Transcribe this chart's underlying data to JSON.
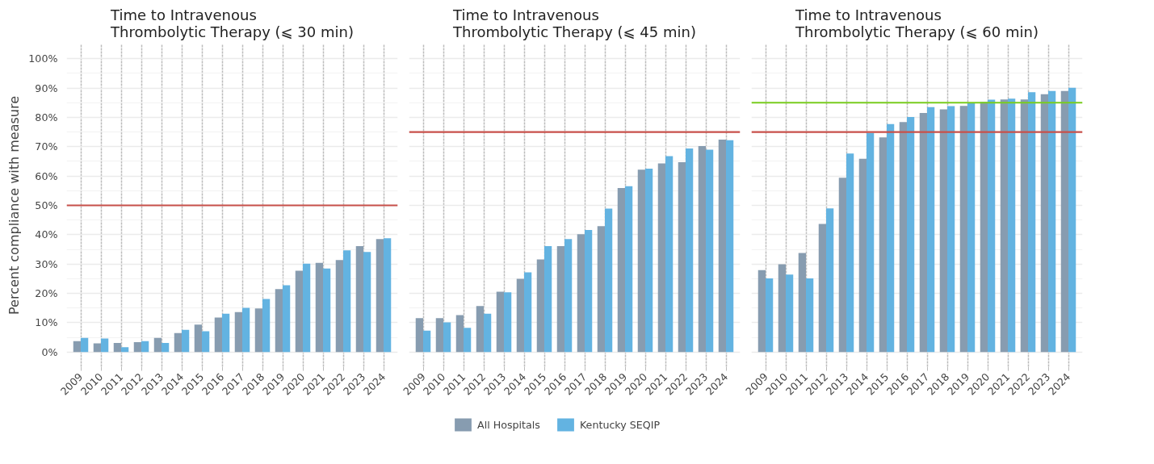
{
  "chart_data": [
    {
      "type": "bar",
      "title": "Time to Intravenous\nThrombolytic Therapy (⩽ 30 min)",
      "ylabel": "Percent compliance with measure",
      "categories": [
        "2009",
        "2010",
        "2011",
        "2012",
        "2013",
        "2014",
        "2015",
        "2016",
        "2017",
        "2018",
        "2019",
        "2020",
        "2021",
        "2022",
        "2023",
        "2024"
      ],
      "series": [
        {
          "color": "#879cb0",
          "values": [
            3.7,
            3.0,
            3.1,
            3.4,
            4.8,
            6.5,
            9.4,
            11.8,
            13.6,
            14.9,
            21.5,
            27.7,
            30.4,
            31.4,
            36.1,
            38.5
          ]
        },
        {
          "color": "#63b3e1",
          "values": [
            4.8,
            4.6,
            1.7,
            3.7,
            3.1,
            7.6,
            7.1,
            13.1,
            15.1,
            18.1,
            22.8,
            30.1,
            28.5,
            34.7,
            34.1,
            38.8
          ]
        }
      ],
      "ylim": [
        -5,
        105
      ],
      "yticks": [
        {
          "value": 0,
          "label": "0%"
        },
        {
          "value": 10,
          "label": "10%"
        },
        {
          "value": 20,
          "label": "20%"
        },
        {
          "value": 30,
          "label": "30%"
        },
        {
          "value": 40,
          "label": "40%"
        },
        {
          "value": 50,
          "label": "50%"
        },
        {
          "value": 60,
          "label": "60%"
        },
        {
          "value": 70,
          "label": "70%"
        },
        {
          "value": 80,
          "label": "80%"
        },
        {
          "value": 90,
          "label": "90%"
        },
        {
          "value": 100,
          "label": "100%"
        }
      ],
      "ref_lines": [
        {
          "axis": "y",
          "value": 50,
          "color": "#c8504a"
        }
      ],
      "grid": true
    },
    {
      "type": "bar",
      "title": "Time to Intravenous\nThrombolytic Therapy (⩽ 45 min)",
      "categories": [
        "2009",
        "2010",
        "2011",
        "2012",
        "2013",
        "2014",
        "2015",
        "2016",
        "2017",
        "2018",
        "2019",
        "2020",
        "2021",
        "2022",
        "2023",
        "2024"
      ],
      "series": [
        {
          "name": "All Hospitals",
          "color": "#879cb0",
          "values": [
            11.6,
            11.6,
            12.6,
            15.7,
            20.6,
            25.0,
            31.6,
            36.1,
            40.2,
            42.9,
            55.9,
            62.2,
            64.3,
            64.7,
            70.2,
            72.4
          ]
        },
        {
          "name": "Kentucky SEQIP",
          "color": "#63b3e1",
          "values": [
            7.3,
            10.1,
            8.3,
            13.1,
            20.4,
            27.2,
            36.1,
            38.5,
            41.6,
            48.9,
            56.5,
            62.5,
            66.8,
            69.4,
            69.0,
            72.2
          ]
        }
      ],
      "ylim": [
        -5,
        105
      ],
      "yticks": [
        {
          "value": 0,
          "label": null
        },
        {
          "value": 10,
          "label": null
        },
        {
          "value": 20,
          "label": null
        },
        {
          "value": 30,
          "label": null
        },
        {
          "value": 40,
          "label": null
        },
        {
          "value": 50,
          "label": null
        },
        {
          "value": 60,
          "label": null
        },
        {
          "value": 70,
          "label": null
        },
        {
          "value": 80,
          "label": null
        },
        {
          "value": 90,
          "label": null
        },
        {
          "value": 100,
          "label": null
        }
      ],
      "ref_lines": [
        {
          "axis": "y",
          "value": 75,
          "color": "#c8504a"
        }
      ],
      "grid": true,
      "tick_labels": "x",
      "legend": "bottom"
    },
    {
      "type": "bar",
      "title": "Time to Intravenous\nThrombolytic Therapy (⩽ 60 min)",
      "categories": [
        "2009",
        "2010",
        "2011",
        "2012",
        "2013",
        "2014",
        "2015",
        "2016",
        "2017",
        "2018",
        "2019",
        "2020",
        "2021",
        "2022",
        "2023",
        "2024"
      ],
      "series": [
        {
          "color": "#879cb0",
          "values": [
            27.9,
            29.9,
            33.8,
            43.7,
            59.4,
            65.9,
            73.2,
            78.4,
            81.5,
            82.7,
            83.9,
            85.3,
            86.1,
            86.1,
            87.9,
            89.0
          ]
        },
        {
          "color": "#63b3e1",
          "values": [
            25.1,
            26.4,
            25.1,
            49.0,
            67.7,
            74.7,
            77.7,
            80.1,
            83.5,
            83.8,
            84.8,
            86.0,
            86.4,
            88.6,
            89.0,
            90.1
          ]
        }
      ],
      "ylim": [
        -5,
        105
      ],
      "yticks": [
        {
          "value": 0,
          "label": null
        },
        {
          "value": 10,
          "label": null
        },
        {
          "value": 20,
          "label": null
        },
        {
          "value": 30,
          "label": null
        },
        {
          "value": 40,
          "label": null
        },
        {
          "value": 50,
          "label": null
        },
        {
          "value": 60,
          "label": null
        },
        {
          "value": 70,
          "label": null
        },
        {
          "value": 80,
          "label": null
        },
        {
          "value": 90,
          "label": null
        },
        {
          "value": 100,
          "label": null
        }
      ],
      "ref_lines": [
        {
          "axis": "y",
          "value": 75,
          "color": "#c8504a"
        },
        {
          "axis": "y",
          "value": 85,
          "color": "#78cc1e"
        }
      ],
      "grid": true,
      "tick_labels": "x"
    }
  ]
}
